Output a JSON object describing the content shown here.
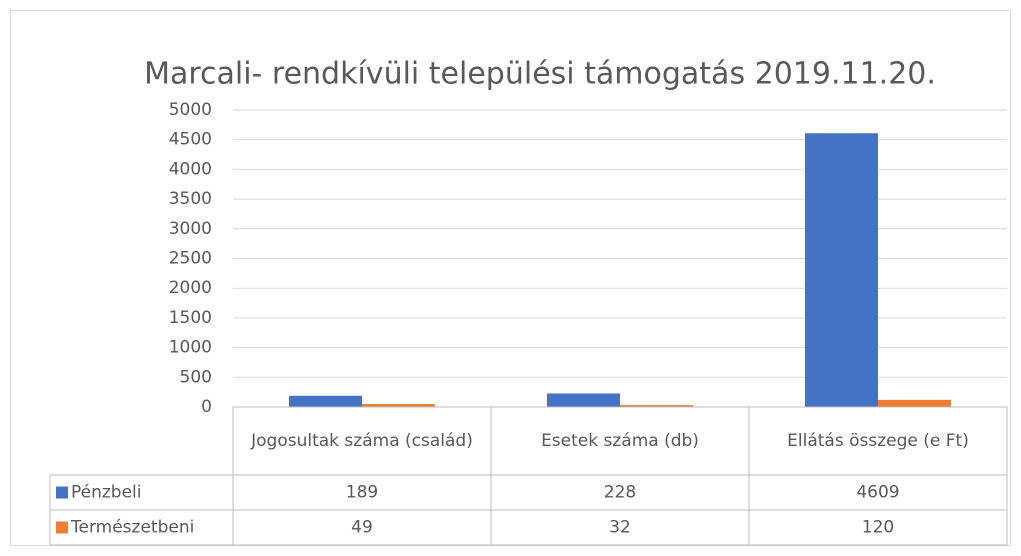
{
  "chart_data": {
    "type": "bar",
    "title": "Marcali- rendkívüli települési támogatás 2019.11.20.",
    "categories": [
      "Jogosultak száma (család)",
      "Esetek száma (db)",
      "Ellátás összege (e Ft)"
    ],
    "series": [
      {
        "name": "Pénzbeli",
        "color": "#4472c4",
        "values": [
          189,
          228,
          4609
        ]
      },
      {
        "name": "Természetbeni",
        "color": "#ed7d31",
        "values": [
          49,
          32,
          120
        ]
      }
    ],
    "ylim": [
      0,
      5000
    ],
    "yticks": [
      0,
      500,
      1000,
      1500,
      2000,
      2500,
      3000,
      3500,
      4000,
      4500,
      5000
    ],
    "grid": true,
    "data_table": true
  }
}
